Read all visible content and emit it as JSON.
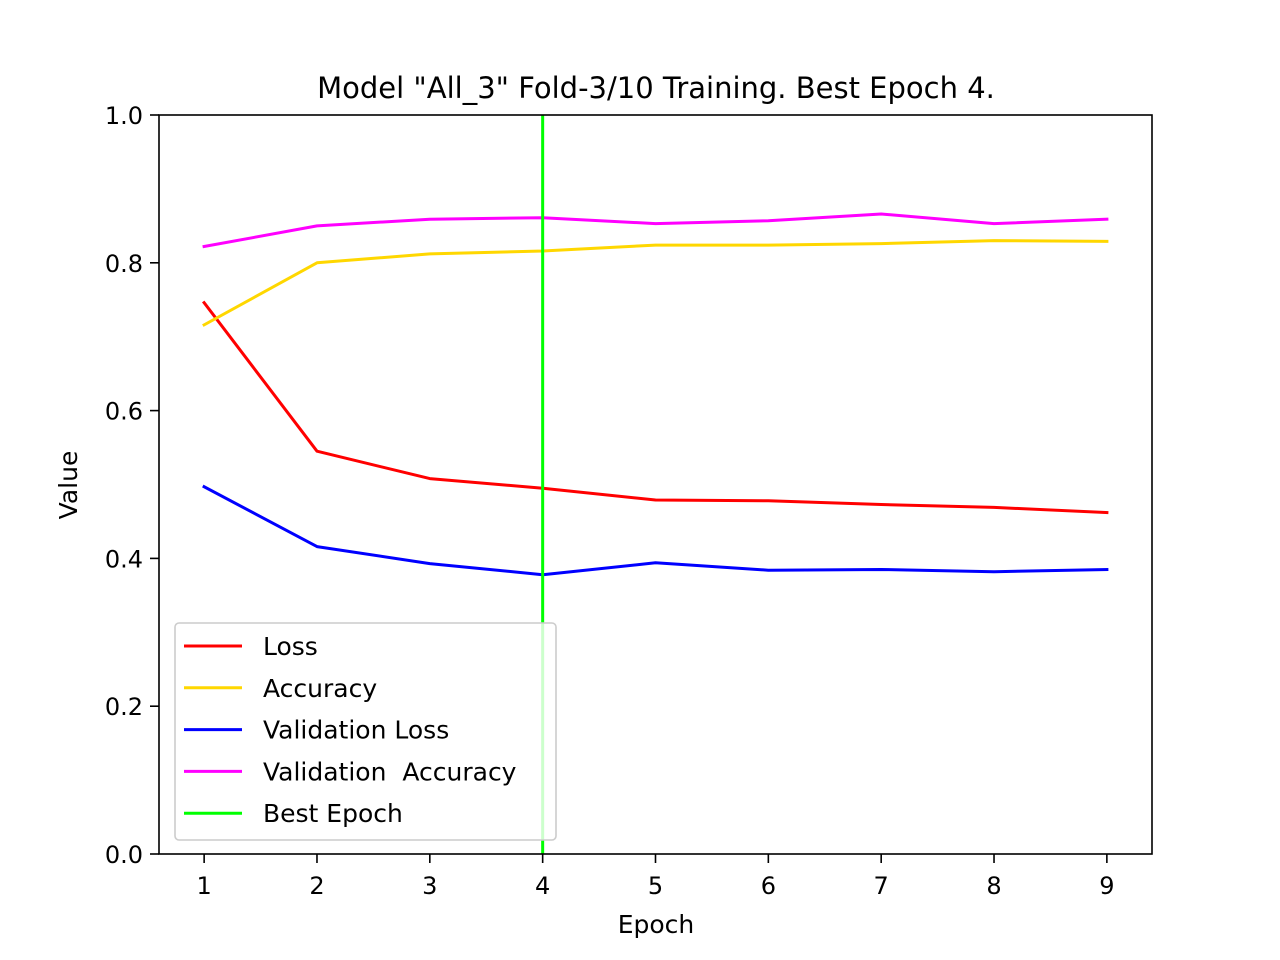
{
  "chart_data": {
    "type": "line",
    "title": "Model \"All_3\" Fold-3/10 Training. Best Epoch 4.",
    "xlabel": "Epoch",
    "ylabel": "Value",
    "x": [
      1,
      2,
      3,
      4,
      5,
      6,
      7,
      8,
      9
    ],
    "xlim": [
      0.6,
      9.4
    ],
    "ylim": [
      0.0,
      1.0
    ],
    "xticks": [
      "1",
      "2",
      "3",
      "4",
      "5",
      "6",
      "7",
      "8",
      "9"
    ],
    "yticks": [
      "0.0",
      "0.2",
      "0.4",
      "0.6",
      "0.8",
      "1.0"
    ],
    "grid": false,
    "legend_position": "lower-left",
    "series": [
      {
        "name": "Loss",
        "color": "#ff0000",
        "values": [
          0.746,
          0.545,
          0.508,
          0.495,
          0.479,
          0.478,
          0.473,
          0.469,
          0.462
        ]
      },
      {
        "name": "Accuracy",
        "color": "#ffd700",
        "values": [
          0.716,
          0.8,
          0.812,
          0.816,
          0.824,
          0.824,
          0.826,
          0.83,
          0.829
        ]
      },
      {
        "name": "Validation Loss",
        "color": "#0000ff",
        "values": [
          0.497,
          0.416,
          0.393,
          0.378,
          0.394,
          0.384,
          0.385,
          0.382,
          0.385
        ]
      },
      {
        "name": "Validation  Accuracy",
        "color": "#ff00ff",
        "values": [
          0.822,
          0.85,
          0.859,
          0.861,
          0.853,
          0.857,
          0.866,
          0.853,
          0.859
        ]
      }
    ],
    "best_epoch": {
      "name": "Best Epoch",
      "x": 4,
      "color": "#00ff00"
    }
  }
}
